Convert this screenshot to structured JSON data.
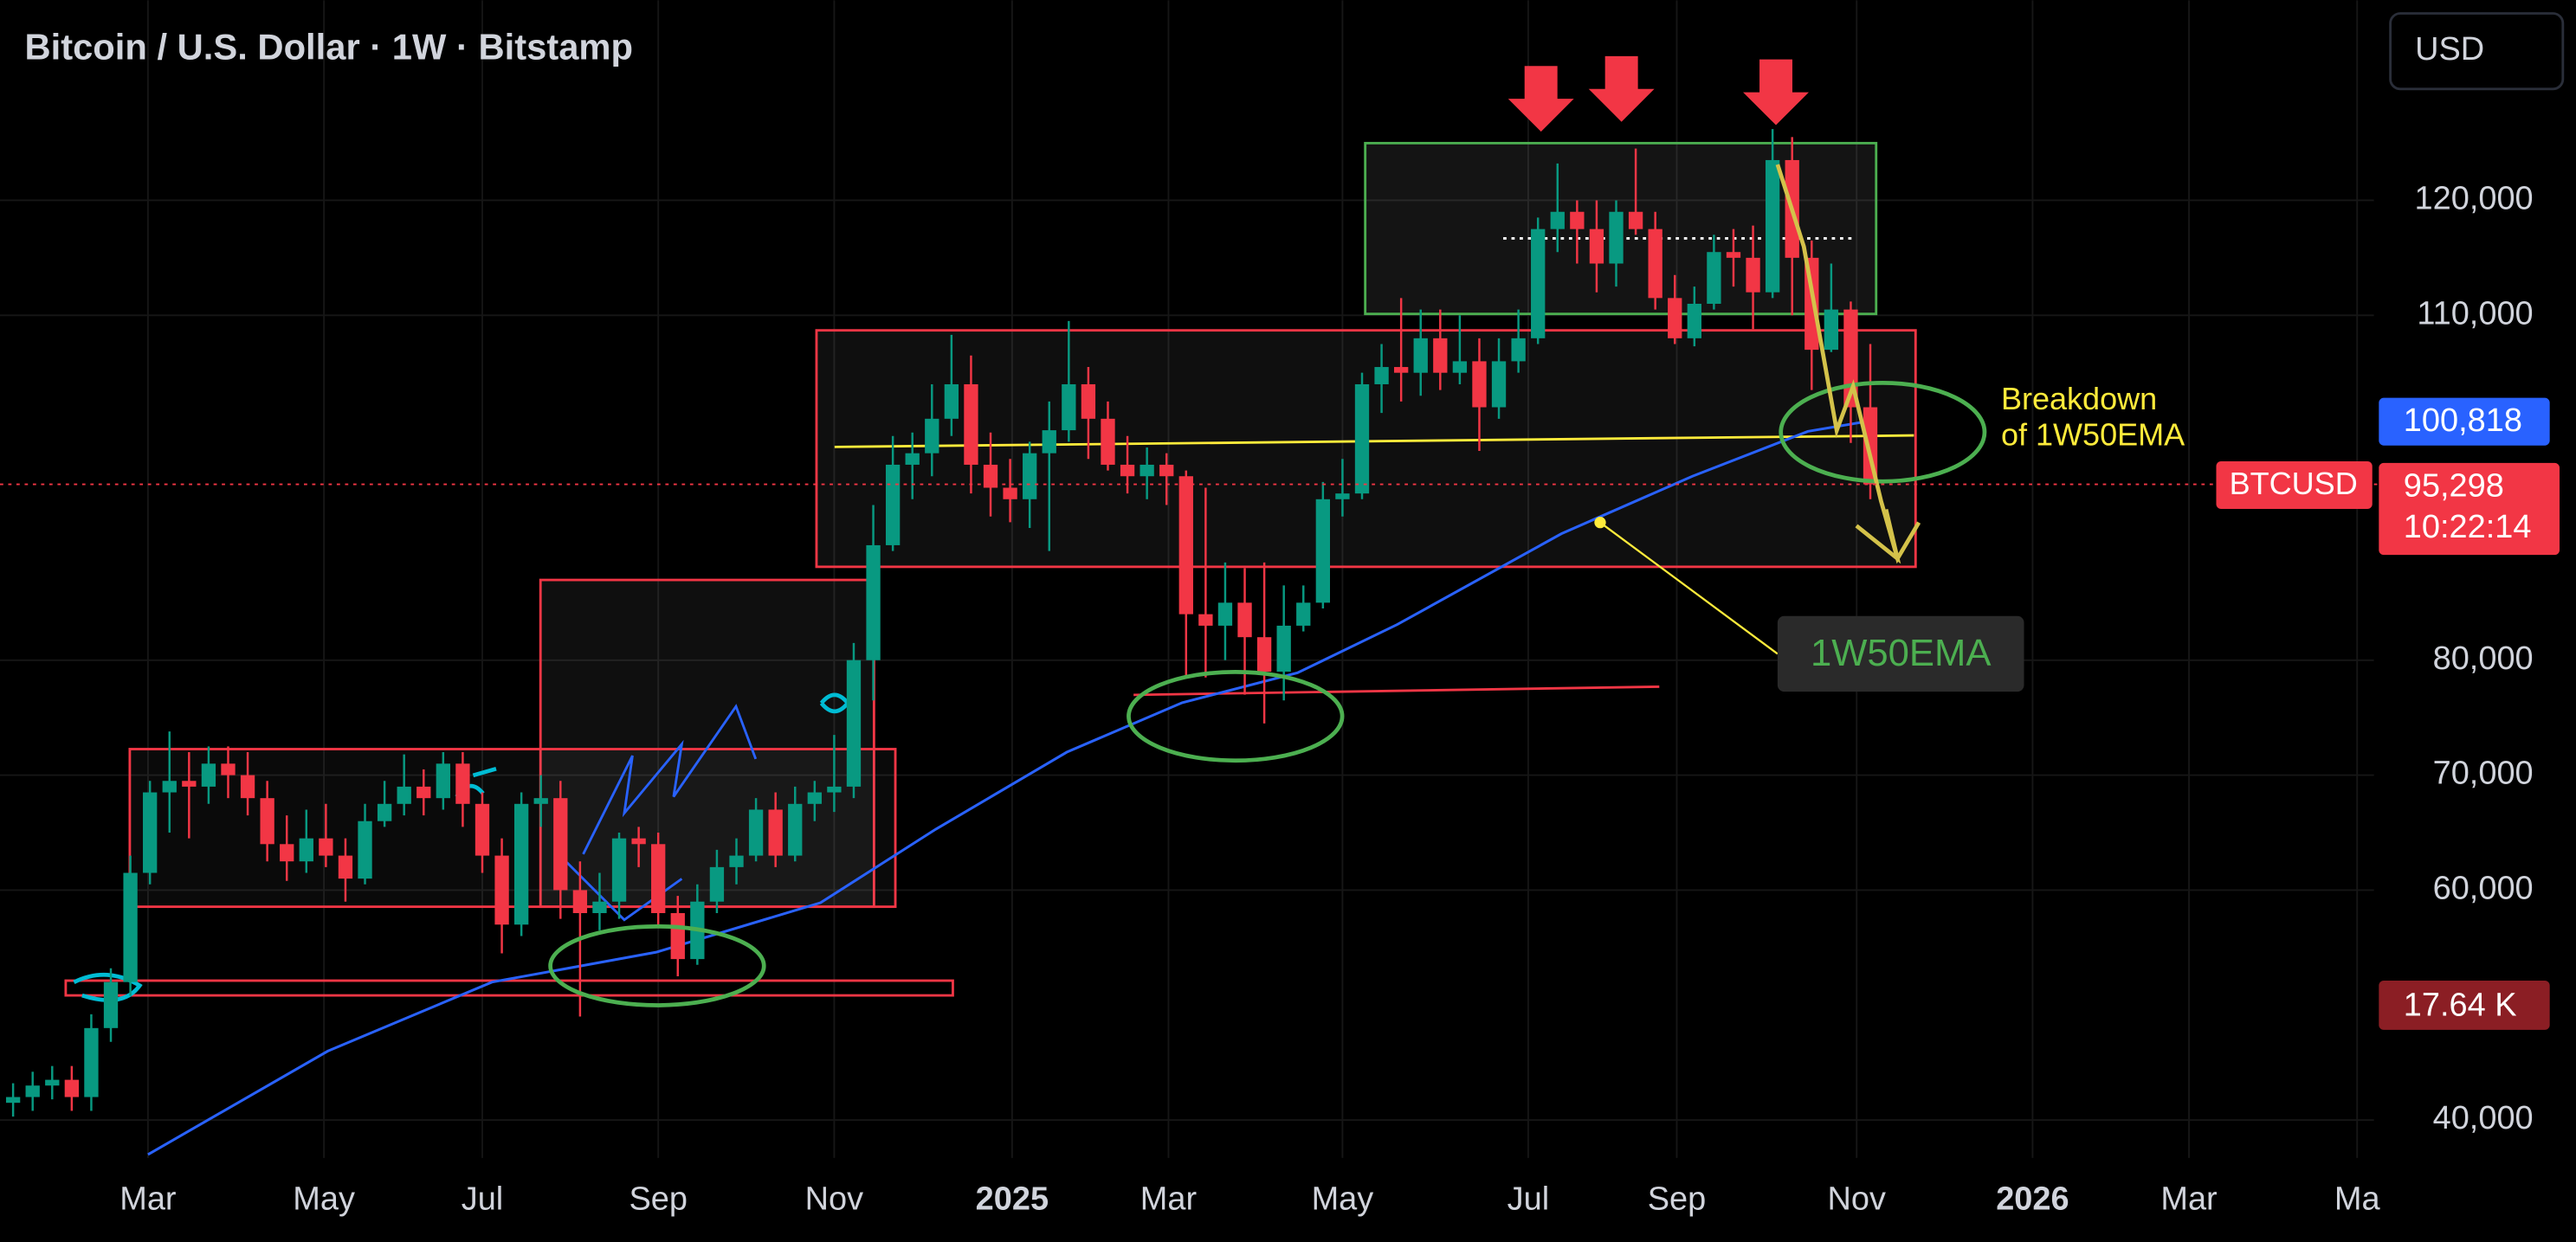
{
  "title": "Bitcoin / U.S. Dollar · 1W · Bitstamp",
  "currency": "USD",
  "chart_data": {
    "type": "candlestick",
    "up_color": "#089981",
    "down_color": "#f23645",
    "ohlc": [
      [
        41500,
        43200,
        40300,
        42000
      ],
      [
        42000,
        44200,
        40800,
        43000
      ],
      [
        43000,
        44700,
        41800,
        43500
      ],
      [
        43500,
        44700,
        40800,
        42000
      ],
      [
        42000,
        49200,
        40800,
        48000
      ],
      [
        48000,
        53200,
        46800,
        52000
      ],
      [
        52000,
        63000,
        50800,
        61500
      ],
      [
        61500,
        69500,
        60500,
        68500
      ],
      [
        68500,
        73800,
        65000,
        69500
      ],
      [
        69500,
        72000,
        64500,
        69000
      ],
      [
        69000,
        72500,
        67500,
        71000
      ],
      [
        71000,
        72500,
        68000,
        70000
      ],
      [
        70000,
        72000,
        66500,
        68000
      ],
      [
        68000,
        69500,
        62500,
        64000
      ],
      [
        64000,
        66500,
        60800,
        62500
      ],
      [
        62500,
        67000,
        61500,
        64500
      ],
      [
        64500,
        67500,
        62000,
        63000
      ],
      [
        63000,
        64500,
        59000,
        61000
      ],
      [
        61000,
        67500,
        60500,
        66000
      ],
      [
        66000,
        69500,
        65500,
        67500
      ],
      [
        67500,
        71800,
        66500,
        69000
      ],
      [
        69000,
        70500,
        66500,
        68000
      ],
      [
        68000,
        72000,
        67000,
        71000
      ],
      [
        71000,
        72000,
        65500,
        67500
      ],
      [
        67500,
        68500,
        61500,
        63000
      ],
      [
        63000,
        64500,
        54500,
        57000
      ],
      [
        57000,
        68500,
        56000,
        67500
      ],
      [
        67500,
        70000,
        65500,
        68000
      ],
      [
        68000,
        69500,
        57500,
        60000
      ],
      [
        60000,
        62500,
        49000,
        58000
      ],
      [
        58000,
        61500,
        56500,
        59000
      ],
      [
        59000,
        65000,
        57500,
        64500
      ],
      [
        64500,
        65500,
        62000,
        64000
      ],
      [
        64000,
        65000,
        57000,
        58000
      ],
      [
        58000,
        59500,
        52500,
        54000
      ],
      [
        54000,
        60500,
        53500,
        59000
      ],
      [
        59000,
        63500,
        58000,
        62000
      ],
      [
        62000,
        64500,
        60500,
        63000
      ],
      [
        63000,
        68000,
        62500,
        67000
      ],
      [
        67000,
        68500,
        62000,
        63000
      ],
      [
        63000,
        69000,
        62500,
        67500
      ],
      [
        67500,
        69500,
        66000,
        68500
      ],
      [
        68500,
        73500,
        66800,
        69000
      ],
      [
        69000,
        81500,
        68000,
        80000
      ],
      [
        80000,
        93500,
        76500,
        90000
      ],
      [
        90000,
        99500,
        89500,
        97000
      ],
      [
        97000,
        99800,
        94000,
        98000
      ],
      [
        98000,
        104000,
        96000,
        101000
      ],
      [
        101000,
        108300,
        99500,
        104000
      ],
      [
        104000,
        106500,
        94500,
        97000
      ],
      [
        97000,
        99800,
        92500,
        95000
      ],
      [
        95000,
        97500,
        92000,
        94000
      ],
      [
        94000,
        99000,
        91500,
        98000
      ],
      [
        98000,
        102500,
        89500,
        100000
      ],
      [
        100000,
        109500,
        99000,
        104000
      ],
      [
        104000,
        105500,
        97500,
        101000
      ],
      [
        101000,
        102500,
        96500,
        97000
      ],
      [
        97000,
        99500,
        94500,
        96000
      ],
      [
        96000,
        98500,
        94000,
        97000
      ],
      [
        97000,
        98000,
        93500,
        96000
      ],
      [
        96000,
        96500,
        78500,
        84000
      ],
      [
        84000,
        95000,
        78500,
        83000
      ],
      [
        83000,
        88500,
        80000,
        85000
      ],
      [
        85000,
        88000,
        77000,
        82000
      ],
      [
        82000,
        88500,
        74500,
        79000
      ],
      [
        79000,
        86500,
        76500,
        83000
      ],
      [
        83000,
        86500,
        82500,
        85000
      ],
      [
        85000,
        95500,
        84500,
        94000
      ],
      [
        94000,
        97500,
        92500,
        94500
      ],
      [
        94500,
        105000,
        94000,
        104000
      ],
      [
        104000,
        107500,
        101500,
        105500
      ],
      [
        105500,
        111500,
        102500,
        105000
      ],
      [
        105000,
        110500,
        103000,
        108000
      ],
      [
        108000,
        110500,
        103500,
        105000
      ],
      [
        105000,
        110000,
        104000,
        106000
      ],
      [
        106000,
        108000,
        98200,
        102000
      ],
      [
        102000,
        108000,
        101000,
        106000
      ],
      [
        106000,
        110500,
        105000,
        108000
      ],
      [
        108000,
        118500,
        107500,
        117500
      ],
      [
        117500,
        123200,
        115500,
        119000
      ],
      [
        119000,
        120000,
        114500,
        117500
      ],
      [
        117500,
        120000,
        112000,
        114500
      ],
      [
        114500,
        120000,
        112500,
        119000
      ],
      [
        119000,
        124500,
        117000,
        117500
      ],
      [
        117500,
        119000,
        110500,
        111500
      ],
      [
        111500,
        113500,
        107500,
        108000
      ],
      [
        108000,
        112500,
        107300,
        111000
      ],
      [
        111000,
        117000,
        110500,
        115500
      ],
      [
        115500,
        117500,
        112500,
        115000
      ],
      [
        115000,
        117800,
        108800,
        112000
      ],
      [
        112000,
        126200,
        111500,
        123500
      ],
      [
        123500,
        125500,
        110000,
        115000
      ],
      [
        115000,
        116500,
        103500,
        107000
      ],
      [
        107000,
        114500,
        106800,
        110500
      ],
      [
        110500,
        111200,
        98900,
        102000
      ],
      [
        102000,
        107500,
        94000,
        95298
      ]
    ],
    "xlim": [
      -0.67,
      120.76
    ],
    "xticks": [
      {
        "value": 6.9,
        "label": "Mar"
      },
      {
        "value": 15.9,
        "label": "May"
      },
      {
        "value": 24,
        "label": "Jul"
      },
      {
        "value": 33,
        "label": "Sep"
      },
      {
        "value": 42,
        "label": "Nov"
      },
      {
        "value": 51.1,
        "label": "2025"
      },
      {
        "value": 59.1,
        "label": "Mar"
      },
      {
        "value": 68,
        "label": "May"
      },
      {
        "value": 77.5,
        "label": "Jul"
      },
      {
        "value": 85.1,
        "label": "Sep"
      },
      {
        "value": 94.3,
        "label": "Nov"
      },
      {
        "value": 103.3,
        "label": "2026"
      },
      {
        "value": 111.3,
        "label": "Mar"
      },
      {
        "value": 119.9,
        "label": "Ma"
      }
    ],
    "ylim": [
      36700,
      137400
    ],
    "yticks": [
      {
        "value": 40000,
        "label": "40,000"
      },
      {
        "value": 60000,
        "label": "60,000"
      },
      {
        "value": 70000,
        "label": "70,000"
      },
      {
        "value": 80000,
        "label": "80,000"
      },
      {
        "value": 110000,
        "label": "110,000"
      },
      {
        "value": 120000,
        "label": "120,000"
      }
    ],
    "grid": true,
    "ema": {
      "name": "1W50EMA",
      "color": "#2962ff",
      "x": [
        6.9,
        16.1,
        24.5,
        32.9,
        41.3,
        47.2,
        53.9,
        59.8,
        65.7,
        70.8,
        79.2,
        85.9,
        91.8,
        95
      ],
      "values": [
        37000,
        46000,
        52000,
        54600,
        58900,
        65300,
        72000,
        76300,
        78900,
        83100,
        91000,
        96000,
        99900,
        100818
      ],
      "last": {
        "value": 100818,
        "label": "100,818"
      }
    },
    "last_price": {
      "symbol": "BTCUSD",
      "value": 95298,
      "label": "95,298",
      "countdown": "10:22:14"
    },
    "volume_label": {
      "value": 17640,
      "label": "17.64 K"
    },
    "annotations": {
      "breakdown": [
        "Breakdown",
        "of 1W50EMA"
      ]
    }
  }
}
